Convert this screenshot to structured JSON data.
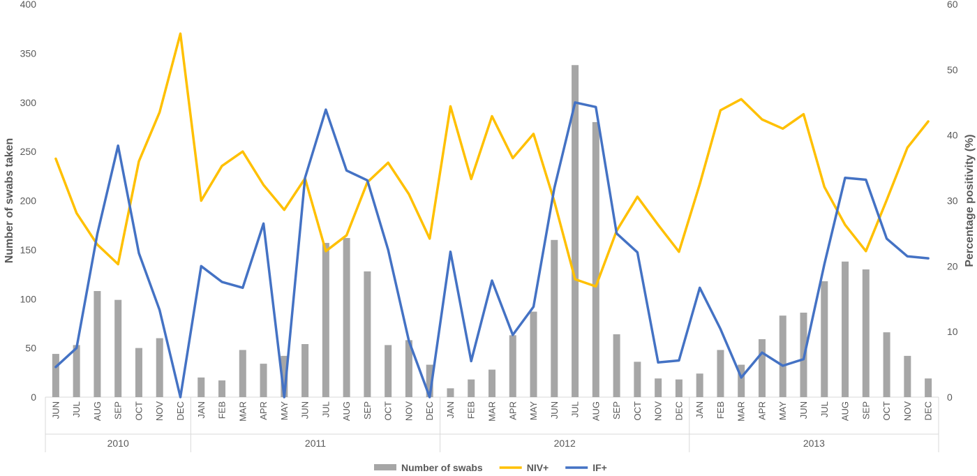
{
  "chart_data": {
    "type": "bar",
    "title": "",
    "ylabel": "Number of swabs taken",
    "y2label": "Percentage positivity (%)",
    "ylim": [
      0,
      400
    ],
    "y_ticks": [
      "0",
      "50",
      "100",
      "150",
      "200",
      "250",
      "300",
      "350",
      "400"
    ],
    "y2lim": [
      0,
      60
    ],
    "y2_ticks": [
      "0",
      "10",
      "20",
      "30",
      "40",
      "50",
      "60"
    ],
    "grid": false,
    "legend_position": "bottom",
    "years": [
      {
        "label": "2010",
        "count": 7
      },
      {
        "label": "2011",
        "count": 12
      },
      {
        "label": "2012",
        "count": 12
      },
      {
        "label": "2013",
        "count": 12
      }
    ],
    "categories": [
      "JUN",
      "JUL",
      "AUG",
      "SEP",
      "OCT",
      "NOV",
      "DEC",
      "JAN",
      "FEB",
      "MAR",
      "APR",
      "MAY",
      "JUN",
      "JUL",
      "AUG",
      "SEP",
      "OCT",
      "NOV",
      "DEC",
      "JAN",
      "FEB",
      "MAR",
      "APR",
      "MAY",
      "JUN",
      "JUL",
      "AUG",
      "SEP",
      "OCT",
      "NOV",
      "DEC",
      "JAN",
      "FEB",
      "MAR",
      "APR",
      "MAY",
      "JUN",
      "JUL",
      "AUG",
      "SEP",
      "OCT",
      "NOV",
      "DEC"
    ],
    "series": [
      {
        "name": "Number of swabs",
        "type": "bar",
        "axis": "left",
        "color": "#a6a6a6",
        "values": [
          44,
          53,
          108,
          99,
          50,
          60,
          0,
          20,
          17,
          48,
          34,
          42,
          54,
          157,
          162,
          128,
          53,
          58,
          33,
          9,
          18,
          28,
          63,
          87,
          160,
          338,
          280,
          64,
          36,
          19,
          18,
          24,
          48,
          33,
          59,
          83,
          86,
          118,
          138,
          130,
          66,
          42,
          19
        ]
      },
      {
        "name": "NIV+",
        "type": "line",
        "axis": "right",
        "color": "#ffc000",
        "values": [
          36.4,
          28.1,
          23.3,
          20.3,
          36,
          43.5,
          55.5,
          30,
          35.3,
          37.5,
          32.4,
          28.6,
          33.4,
          22.3,
          24.7,
          32.8,
          35.8,
          31,
          24.2,
          44.4,
          33.3,
          42.9,
          36.5,
          40.2,
          29.9,
          18,
          16.9,
          25.4,
          30.6,
          26.3,
          22.2,
          32.5,
          43.8,
          45.5,
          42.4,
          41,
          43.2,
          32.1,
          26.3,
          22.3,
          30.1,
          38.1,
          42.1
        ]
      },
      {
        "name": "IF+",
        "type": "line",
        "axis": "right",
        "color": "#4472c4",
        "values": [
          4.6,
          7.5,
          24.9,
          38.4,
          22,
          13.3,
          0,
          20,
          17.6,
          16.7,
          26.5,
          0,
          33.5,
          43.9,
          34.6,
          33.1,
          22.5,
          8.6,
          0,
          22.2,
          5.5,
          17.8,
          9.5,
          13.8,
          31.9,
          45,
          44.3,
          25,
          22.1,
          5.3,
          5.6,
          16.7,
          10.4,
          3,
          6.8,
          4.8,
          5.8,
          20.3,
          33.5,
          33.2,
          24.2,
          21.5,
          21.2
        ]
      }
    ]
  }
}
